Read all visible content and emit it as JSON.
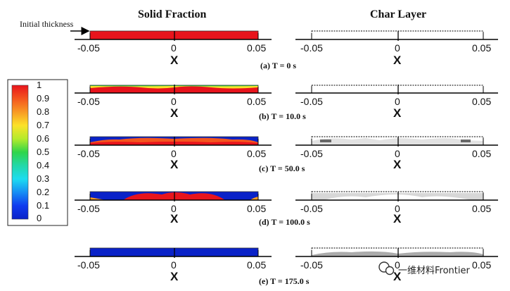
{
  "headers": {
    "solid": "Solid Fraction",
    "char": "Char Layer"
  },
  "annotation": {
    "initial_thickness": "Initial thickness"
  },
  "axis": {
    "ticks": [
      "-0.05",
      "0",
      "0.05"
    ],
    "xlabel": "X"
  },
  "rows": [
    {
      "caption": "(a) T = 0 s"
    },
    {
      "caption": "(b) T = 10.0 s"
    },
    {
      "caption": "(c) T = 50.0 s"
    },
    {
      "caption": "(d) T = 100.0 s"
    },
    {
      "caption": "(e) T = 175.0 s"
    }
  ],
  "colorbar": {
    "ticks": [
      "1",
      "0.9",
      "0.8",
      "0.7",
      "0.6",
      "0.5",
      "0.4",
      "0.3",
      "0.2",
      "0.1",
      "0"
    ],
    "colors": [
      "#e8141c",
      "#f4561e",
      "#f89a24",
      "#fce229",
      "#b4eb2c",
      "#2fd54a",
      "#22d8a8",
      "#1ddcf0",
      "#168ef4",
      "#0f3bef",
      "#0a22c8"
    ]
  },
  "watermark": "一维材料Frontier"
}
